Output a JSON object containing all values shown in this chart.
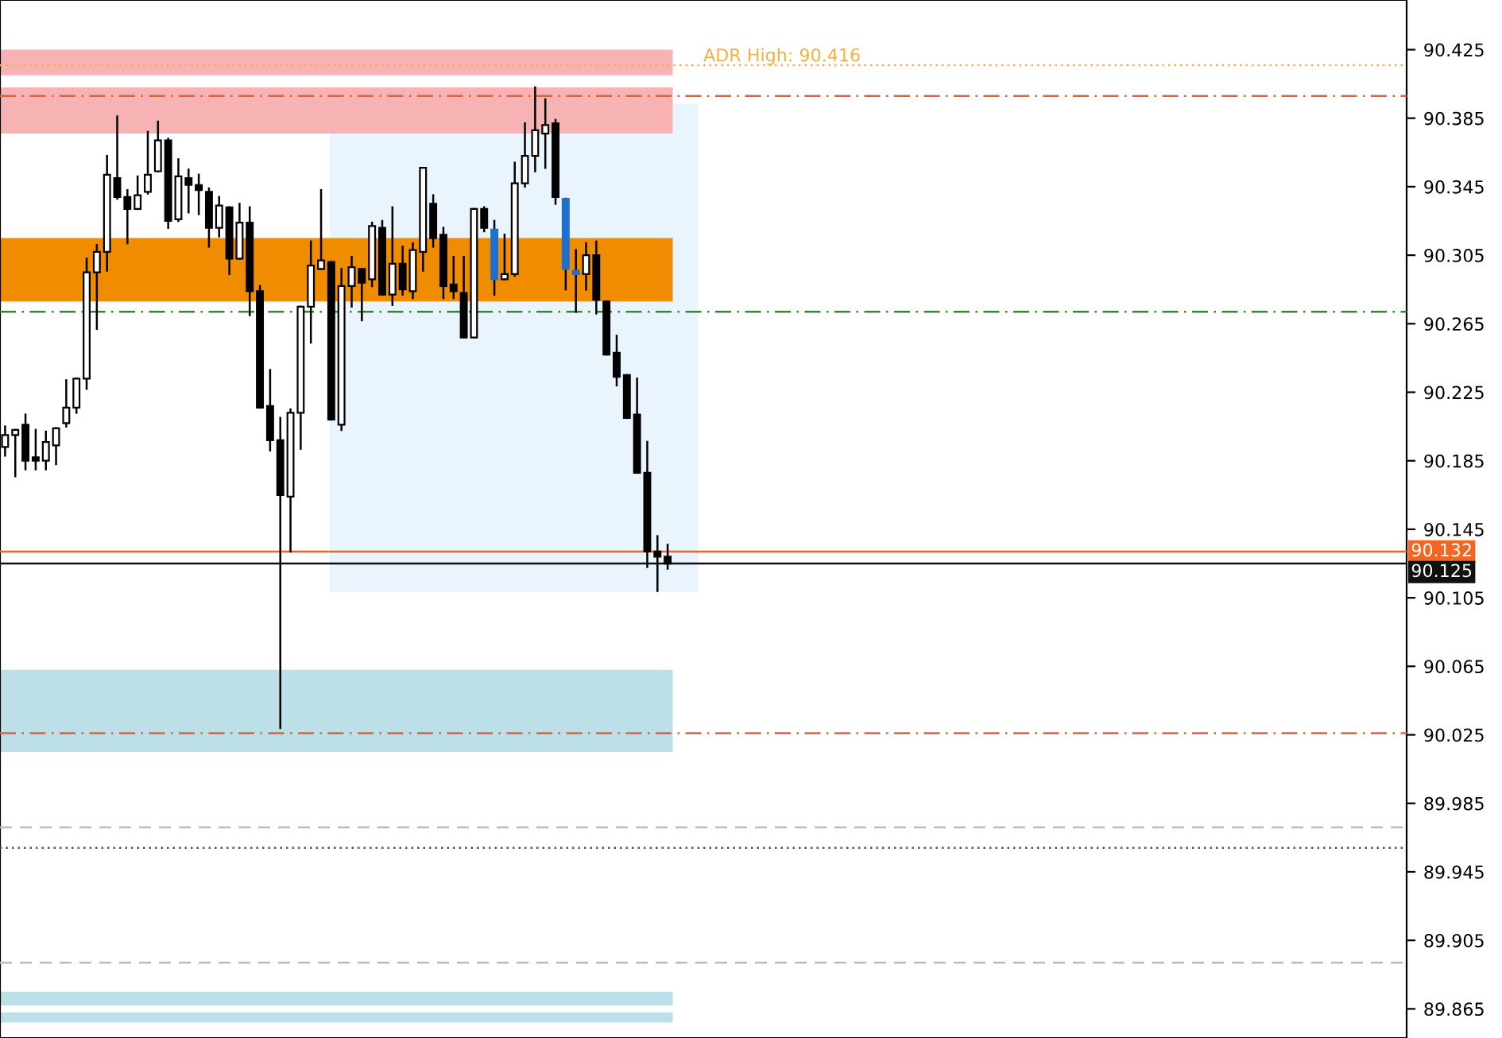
{
  "chart_data": {
    "type": "candlestick",
    "categories": [
      null,
      null,
      null,
      null,
      null,
      null,
      null,
      null,
      null,
      null,
      null,
      null,
      null,
      null,
      null,
      null,
      null,
      null,
      null,
      null,
      null,
      null,
      null,
      null,
      null,
      null,
      null,
      null,
      null,
      null,
      null,
      null,
      null,
      null,
      null,
      null,
      null,
      null,
      null,
      null,
      null,
      null,
      null,
      null,
      null,
      null,
      null,
      null,
      null,
      null,
      null,
      null,
      null,
      null,
      null,
      null,
      null,
      null,
      null,
      null,
      null,
      null,
      null,
      null,
      null,
      null,
      null,
      null,
      null,
      null,
      null,
      null,
      null,
      null,
      null,
      null,
      null,
      null,
      null,
      null,
      null,
      null,
      null,
      null,
      null,
      null,
      null,
      null,
      null,
      null,
      null,
      null,
      null,
      null,
      null,
      null,
      null,
      null,
      null,
      null,
      null,
      null,
      null,
      null,
      null,
      null,
      null,
      null,
      null,
      null,
      null,
      null,
      null,
      null,
      null,
      null,
      null,
      null,
      null,
      null,
      null,
      null,
      null,
      null,
      null,
      null,
      null,
      null,
      null,
      null,
      null,
      null,
      null,
      null,
      null,
      null,
      null,
      null
    ],
    "ohlc": [
      [
        90.193,
        90.205,
        90.188,
        90.2
      ],
      [
        90.2,
        90.203,
        90.176,
        90.203
      ],
      [
        90.206,
        90.212,
        90.18,
        90.185
      ],
      [
        90.187,
        90.203,
        90.18,
        90.185
      ],
      [
        90.185,
        90.202,
        90.18,
        90.196
      ],
      [
        90.194,
        90.204,
        90.183,
        90.204
      ],
      [
        90.207,
        90.232,
        90.205,
        90.216
      ],
      [
        90.216,
        90.233,
        90.213,
        90.233
      ],
      [
        90.233,
        90.303,
        90.227,
        90.295
      ],
      [
        90.295,
        90.311,
        90.262,
        90.307
      ],
      [
        90.307,
        90.363,
        90.296,
        90.352
      ],
      [
        90.35,
        90.386,
        90.338,
        90.339
      ],
      [
        90.339,
        90.343,
        90.312,
        90.332
      ],
      [
        90.332,
        90.351,
        90.332,
        90.34
      ],
      [
        90.342,
        90.377,
        90.341,
        90.352
      ],
      [
        90.354,
        90.383,
        90.354,
        90.372
      ],
      [
        90.372,
        90.373,
        90.321,
        90.325
      ],
      [
        90.326,
        90.361,
        90.325,
        90.351
      ],
      [
        90.35,
        90.355,
        90.33,
        90.346
      ],
      [
        90.346,
        90.352,
        90.329,
        90.343
      ],
      [
        90.342,
        90.344,
        90.31,
        90.321
      ],
      [
        90.321,
        90.339,
        90.316,
        90.334
      ],
      [
        90.333,
        90.333,
        90.294,
        90.303
      ],
      [
        90.303,
        90.335,
        90.303,
        90.324
      ],
      [
        90.324,
        90.333,
        90.27,
        90.284
      ],
      [
        90.284,
        90.287,
        90.216,
        90.216
      ],
      [
        90.217,
        90.238,
        90.191,
        90.197
      ],
      [
        90.197,
        90.21,
        90.029,
        90.165
      ],
      [
        90.164,
        90.215,
        90.132,
        90.213
      ],
      [
        90.213,
        90.275,
        90.192,
        90.275
      ],
      [
        90.275,
        90.313,
        90.254,
        90.299
      ],
      [
        90.297,
        90.343,
        90.297,
        90.302
      ],
      [
        90.301,
        90.301,
        90.209,
        90.209
      ],
      [
        90.206,
        90.297,
        90.203,
        90.287
      ],
      [
        90.287,
        90.304,
        90.275,
        90.298
      ],
      [
        90.297,
        90.297,
        90.267,
        90.289
      ],
      [
        90.291,
        90.324,
        90.287,
        90.322
      ],
      [
        90.321,
        90.325,
        90.282,
        90.282
      ],
      [
        90.282,
        90.333,
        90.276,
        90.3
      ],
      [
        90.3,
        90.31,
        90.282,
        90.285
      ],
      [
        90.284,
        90.312,
        90.28,
        90.308
      ],
      [
        90.307,
        90.356,
        90.296,
        90.356
      ],
      [
        90.335,
        90.34,
        90.31,
        90.315
      ],
      [
        90.317,
        90.321,
        90.28,
        90.287
      ],
      [
        90.288,
        90.304,
        90.28,
        90.284
      ],
      [
        90.283,
        90.304,
        90.257,
        90.257
      ],
      [
        90.257,
        90.332,
        90.257,
        90.332
      ],
      [
        90.332,
        90.333,
        90.319,
        90.321
      ],
      [
        90.32,
        90.325,
        90.282,
        90.291
      ],
      [
        90.291,
        90.317,
        90.291,
        90.294
      ],
      [
        90.294,
        90.359,
        90.293,
        90.347
      ],
      [
        90.347,
        90.382,
        90.345,
        90.363
      ],
      [
        90.363,
        90.403,
        90.354,
        90.378
      ],
      [
        90.376,
        90.396,
        90.356,
        90.381
      ],
      [
        90.382,
        90.384,
        90.335,
        90.339
      ],
      [
        90.338,
        90.338,
        90.285,
        90.297
      ],
      [
        90.296,
        90.308,
        90.272,
        90.294
      ],
      [
        90.294,
        90.312,
        90.285,
        90.305
      ],
      [
        90.305,
        90.313,
        90.271,
        90.279
      ],
      [
        90.278,
        90.278,
        90.247,
        90.247
      ],
      [
        90.248,
        90.258,
        90.229,
        90.234
      ],
      [
        90.235,
        90.235,
        90.21,
        90.21
      ],
      [
        90.212,
        90.233,
        90.178,
        90.178
      ],
      [
        90.178,
        90.196,
        90.123,
        90.132
      ],
      [
        90.132,
        90.141,
        90.109,
        90.129
      ],
      [
        90.129,
        90.136,
        90.122,
        90.125
      ],
      null,
      null,
      null,
      null,
      null,
      null,
      null,
      null,
      null,
      null,
      null,
      null,
      null,
      null,
      null,
      null,
      null,
      null,
      null,
      null,
      null,
      null,
      null,
      null,
      null,
      null,
      null,
      null,
      null,
      null,
      null,
      null,
      null,
      null,
      null,
      null,
      null,
      null,
      null,
      null,
      null,
      null,
      null,
      null,
      null,
      null,
      null,
      null,
      null,
      null,
      null,
      null,
      null,
      null,
      null,
      null,
      null,
      null,
      null,
      null,
      null,
      null,
      null,
      null,
      null,
      null,
      null,
      null,
      null,
      null,
      null,
      null
    ],
    "colors": [
      "#ffffff",
      "#ffffff",
      "#000000",
      "#000000",
      "#ffffff",
      "#ffffff",
      "#ffffff",
      "#ffffff",
      "#ffffff",
      "#ffffff",
      "#ffffff",
      "#000000",
      "#000000",
      "#ffffff",
      "#ffffff",
      "#ffffff",
      "#000000",
      "#ffffff",
      "#000000",
      "#000000",
      "#000000",
      "#ffffff",
      "#000000",
      "#ffffff",
      "#000000",
      "#000000",
      "#000000",
      "#000000",
      "#ffffff",
      "#ffffff",
      "#ffffff",
      "#ffffff",
      "#000000",
      "#ffffff",
      "#ffffff",
      "#000000",
      "#ffffff",
      "#000000",
      "#ffffff",
      "#000000",
      "#ffffff",
      "#ffffff",
      "#000000",
      "#000000",
      "#000000",
      "#000000",
      "#ffffff",
      "#000000",
      "#1f6fd0",
      "#ffffff",
      "#ffffff",
      "#ffffff",
      "#ffffff",
      "#ffffff",
      "#000000",
      "#1f6fd0",
      "#1f6fd0",
      "#ffffff",
      "#000000",
      "#000000",
      "#000000",
      "#000000",
      "#000000",
      "#000000",
      "#000000",
      "#000000",
      null,
      null,
      null,
      null,
      null,
      null,
      null,
      null,
      null,
      null,
      null,
      null,
      null,
      null,
      null,
      null,
      null,
      null,
      null,
      null,
      null,
      null,
      null,
      null,
      null,
      null,
      null,
      null,
      null,
      null,
      null,
      null,
      null,
      null,
      null,
      null,
      null,
      null,
      null,
      null,
      null,
      null,
      null,
      null,
      null,
      null,
      null,
      null,
      null,
      null,
      null,
      null,
      null,
      null,
      null,
      null,
      null,
      null,
      null,
      null,
      null,
      null,
      null,
      null,
      null,
      null,
      null,
      null,
      null,
      null,
      null,
      null
    ],
    "ylim": [
      89.848,
      90.454
    ],
    "yticks": [
      90.425,
      90.385,
      90.345,
      90.305,
      90.265,
      90.225,
      90.185,
      90.145,
      90.105,
      90.065,
      90.025,
      89.985,
      89.945,
      89.905,
      89.865
    ],
    "bands": [
      {
        "axis": "y",
        "from": 90.41,
        "to": 90.425,
        "color": "#f7b3b3"
      },
      {
        "axis": "y",
        "from": 90.376,
        "to": 90.403,
        "color": "#f7b3b3"
      },
      {
        "axis": "y",
        "from": 90.278,
        "to": 90.315,
        "color": "#f08c00"
      },
      {
        "axis": "y",
        "from": 90.015,
        "to": 90.063,
        "color": "#bcdfe8"
      },
      {
        "axis": "y",
        "from": 89.867,
        "to": 89.875,
        "color": "#bcdfe8"
      },
      {
        "axis": "y",
        "from": 89.857,
        "to": 89.863,
        "color": "#bcdfe8"
      }
    ],
    "ref_lines": [
      {
        "axis": "y",
        "value": 90.416,
        "label": "ADR High: 90.416",
        "color": "#f5b041",
        "line_style": "dotted"
      },
      {
        "axis": "y",
        "value": 90.398,
        "color": "#e0603c",
        "line_style": "dashdot"
      },
      {
        "axis": "y",
        "value": 90.272,
        "color": "#2e8b2e",
        "line_style": "dashdot"
      },
      {
        "axis": "y",
        "value": 90.132,
        "label": "90.132",
        "color": "#f26522",
        "line_style": "solid"
      },
      {
        "axis": "y",
        "value": 90.125,
        "label": "90.125",
        "color": "#111111",
        "line_style": "solid"
      },
      {
        "axis": "y",
        "value": 90.026,
        "color": "#e0603c",
        "line_style": "dashdot"
      },
      {
        "axis": "y",
        "value": 89.971,
        "color": "#bbbbbb",
        "line_style": "dashed"
      },
      {
        "axis": "y",
        "value": 89.959,
        "color": "#555555",
        "line_style": "dotted"
      },
      {
        "axis": "y",
        "value": 89.892,
        "color": "#bbbbbb",
        "line_style": "dashed"
      }
    ],
    "grid": false,
    "legend": false
  }
}
